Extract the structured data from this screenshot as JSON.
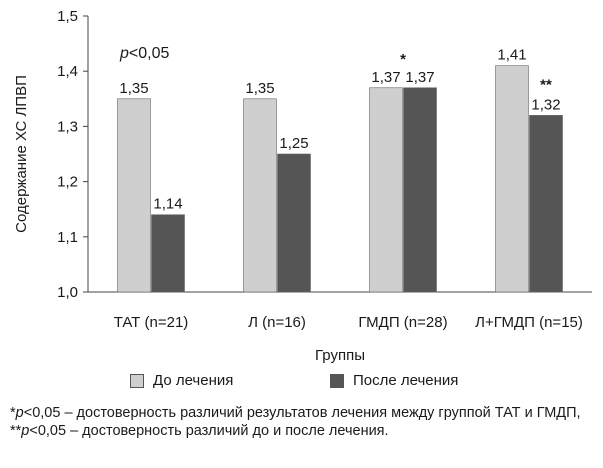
{
  "chart_data": {
    "type": "bar",
    "categories": [
      "ТАТ (n=21)",
      "Л (n=16)",
      "ГМДП (n=28)",
      "Л+ГМДП (n=15)"
    ],
    "series": [
      {
        "name": "До лечения",
        "values": [
          1.35,
          1.35,
          1.37,
          1.41
        ],
        "labels": [
          "1,35",
          "1,35",
          "1,37",
          "1,41"
        ],
        "color": "#cfcfcf"
      },
      {
        "name": "После лечения",
        "values": [
          1.14,
          1.25,
          1.37,
          1.32
        ],
        "labels": [
          "1,14",
          "1,25",
          "1,37",
          "1,32"
        ],
        "color": "#555555"
      }
    ],
    "ylim": [
      1.0,
      1.5
    ],
    "yticks": [
      1.0,
      1.1,
      1.2,
      1.3,
      1.4,
      1.5
    ],
    "ytick_labels": [
      "1,0",
      "1,1",
      "1,2",
      "1,3",
      "1,4",
      "1,5"
    ],
    "xlabel": "Группы",
    "ylabel": "Содержание ХС ЛПВП",
    "annotation": "p<0,05",
    "significance_marks": [
      {
        "category": "ГМДП (n=28)",
        "text": "*"
      },
      {
        "category": "Л+ГМДП (n=15)",
        "text": "**"
      }
    ],
    "grid": false,
    "legend_position": "bottom"
  },
  "legend": {
    "before": "До лечения",
    "after": "После лечения"
  },
  "footnote": {
    "star1": "*",
    "p1": "p",
    "t1": "<0,05 – достоверность различий результатов лечения между группой ТАТ и ГМДП, **",
    "p2": "p",
    "t2": "<0,05 – достоверность различий до и после лечения."
  }
}
